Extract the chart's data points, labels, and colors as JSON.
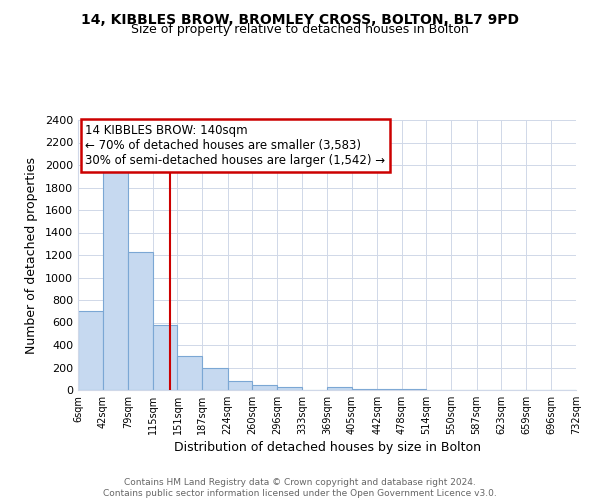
{
  "title": "14, KIBBLES BROW, BROMLEY CROSS, BOLTON, BL7 9PD",
  "subtitle": "Size of property relative to detached houses in Bolton",
  "xlabel": "Distribution of detached houses by size in Bolton",
  "ylabel": "Number of detached properties",
  "bar_color": "#c6d9f0",
  "bar_edge_color": "#7ba7d4",
  "bin_edges": [
    6,
    42,
    79,
    115,
    151,
    187,
    224,
    260,
    296,
    333,
    369,
    405,
    442,
    478,
    514,
    550,
    587,
    623,
    659,
    696,
    732
  ],
  "bar_heights": [
    700,
    1940,
    1230,
    575,
    300,
    200,
    80,
    45,
    30,
    0,
    30,
    5,
    5,
    5,
    0,
    0,
    0,
    0,
    0,
    0
  ],
  "property_size": 140,
  "property_line_color": "#cc0000",
  "annotation_title": "14 KIBBLES BROW: 140sqm",
  "annotation_line1": "← 70% of detached houses are smaller (3,583)",
  "annotation_line2": "30% of semi-detached houses are larger (1,542) →",
  "annotation_box_color": "#cc0000",
  "ylim": [
    0,
    2400
  ],
  "yticks": [
    0,
    200,
    400,
    600,
    800,
    1000,
    1200,
    1400,
    1600,
    1800,
    2000,
    2200,
    2400
  ],
  "tick_labels": [
    "6sqm",
    "42sqm",
    "79sqm",
    "115sqm",
    "151sqm",
    "187sqm",
    "224sqm",
    "260sqm",
    "296sqm",
    "333sqm",
    "369sqm",
    "405sqm",
    "442sqm",
    "478sqm",
    "514sqm",
    "550sqm",
    "587sqm",
    "623sqm",
    "659sqm",
    "696sqm",
    "732sqm"
  ],
  "footer_line1": "Contains HM Land Registry data © Crown copyright and database right 2024.",
  "footer_line2": "Contains public sector information licensed under the Open Government Licence v3.0.",
  "bg_color": "#ffffff",
  "grid_color": "#d0d8e8"
}
